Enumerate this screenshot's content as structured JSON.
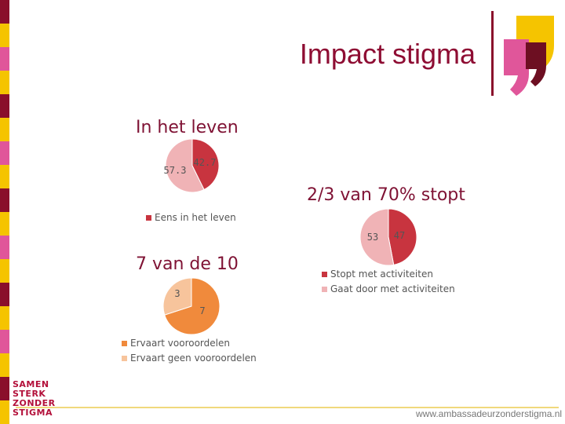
{
  "slide": {
    "title": "Impact stigma",
    "footer_url": "www.ambassadeurzonderstigma.nl",
    "logo_lines": [
      "SAMEN",
      "STERK",
      "ZONDER",
      "STIGMA"
    ]
  },
  "colors": {
    "title": "#8e0d33",
    "stripe": [
      "#8a0f2b",
      "#f5c400",
      "#e0569a",
      "#f5c400"
    ],
    "mark_pink": "#e0569a",
    "mark_dark": "#6d0f22",
    "mark_yellow": "#f5c400"
  },
  "chart_data": [
    {
      "type": "pie",
      "title": "In het leven",
      "slices": [
        {
          "label": "",
          "value": 57.3,
          "display": "57.3",
          "color": "#f0b3b6"
        },
        {
          "label": "Eens in het leven",
          "value": 42.7,
          "display": "42.7",
          "color": "#c8343f"
        }
      ],
      "legend": [
        "Eens in het leven"
      ],
      "legend_placement": "bottom"
    },
    {
      "type": "pie",
      "title": "2/3 van 70% stopt",
      "slices": [
        {
          "label": "Stopt met activiteiten",
          "value": 47,
          "display": "47",
          "color": "#c8343f"
        },
        {
          "label": "Gaat door met activiteiten",
          "value": 53,
          "display": "53",
          "color": "#f0b3b6"
        }
      ],
      "legend": [
        "Stopt met activiteiten",
        "Gaat door met activiteiten"
      ],
      "legend_placement": "bottom"
    },
    {
      "type": "pie",
      "title": "7 van de 10",
      "slices": [
        {
          "label": "Ervaart vooroordelen",
          "value": 7,
          "display": "7",
          "color": "#f08a3c"
        },
        {
          "label": "Ervaart geen vooroordelen",
          "value": 3,
          "display": "3",
          "color": "#f7c49c"
        }
      ],
      "legend": [
        "Ervaart vooroordelen",
        "Ervaart geen vooroordelen"
      ],
      "legend_placement": "bottom"
    }
  ]
}
